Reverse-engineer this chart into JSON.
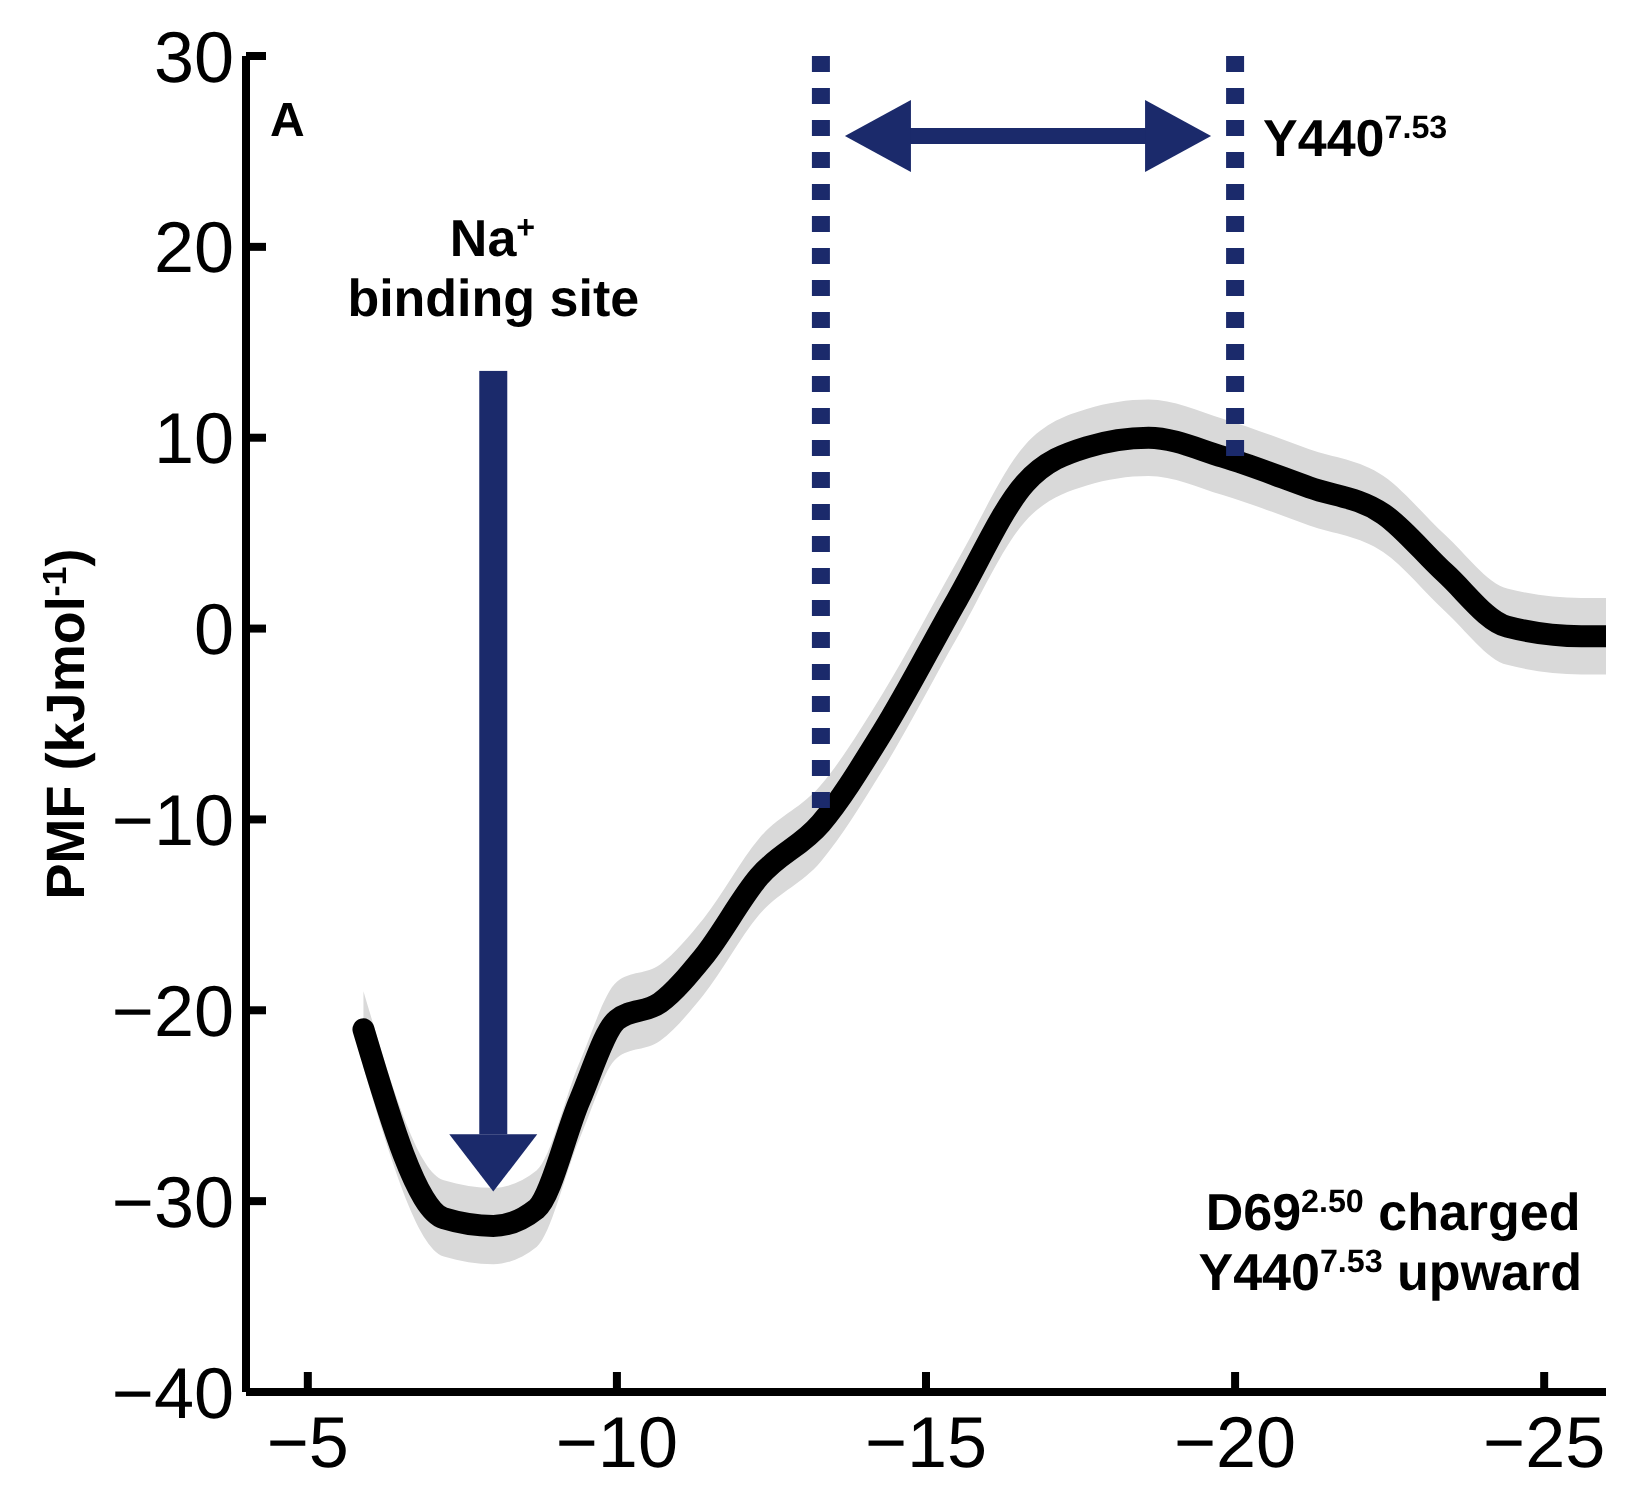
{
  "chart_data": {
    "type": "line",
    "ylabel": "PMF (kJmol$^{-1}$)",
    "xlim": [
      -4,
      -26
    ],
    "xticks": [
      -5,
      -10,
      -15,
      -20,
      -25
    ],
    "ylim": [
      -40,
      30
    ],
    "yticks": [
      -40,
      -30,
      -20,
      -10,
      0,
      10,
      20,
      30
    ],
    "marker": "none",
    "line_style": "solid",
    "series": [
      {
        "color": "#000000",
        "x": [
          -5.9,
          -7.2,
          -8.0,
          -8.7,
          -9.4,
          -10.0,
          -10.7,
          -11.4,
          -12.3,
          -13.3,
          -14.3,
          -15.5,
          -16.6,
          -17.6,
          -18.6,
          -19.8,
          -21.2,
          -22.4,
          -23.4,
          -24.4,
          -25.6,
          -26
        ],
        "values": [
          -21,
          -30.9,
          -31.3,
          -30.4,
          -24.7,
          -20.5,
          -19.6,
          -17.2,
          -13,
          -10.2,
          -5.4,
          1.5,
          7.6,
          9.5,
          10,
          9,
          7.4,
          6,
          2.9,
          0.1,
          -0.4,
          -0.4
        ],
        "lower": [
          -23,
          -32.9,
          -33.3,
          -32.4,
          -26.7,
          -22.5,
          -21.6,
          -19.2,
          -15,
          -12.2,
          -7.4,
          -0.5,
          5.6,
          7.5,
          8,
          7,
          5.4,
          4,
          0.9,
          -1.9,
          -2.4,
          -2.4
        ],
        "upper": [
          -19,
          -28.9,
          -29.3,
          -28.4,
          -22.7,
          -18.5,
          -17.6,
          -15.2,
          -11,
          -8.2,
          -3.4,
          3.5,
          9.6,
          11.5,
          12,
          11,
          9.4,
          8,
          4.9,
          2.1,
          1.6,
          1.6
        ]
      }
    ],
    "ref_lines": [
      {
        "axis": "x",
        "value": -13.3,
        "color": "#1b2a6b",
        "line_style": "dotted"
      },
      {
        "axis": "x",
        "value": -20,
        "label": "Y440$^{7.53}$",
        "color": "#1b2a6b",
        "line_style": "dotted"
      }
    ],
    "annotations": [
      "A",
      "Na$^{+}$\nbinding site",
      "D69$^{2.50}$ charged\nY440$^{7.53}$ upward"
    ]
  }
}
